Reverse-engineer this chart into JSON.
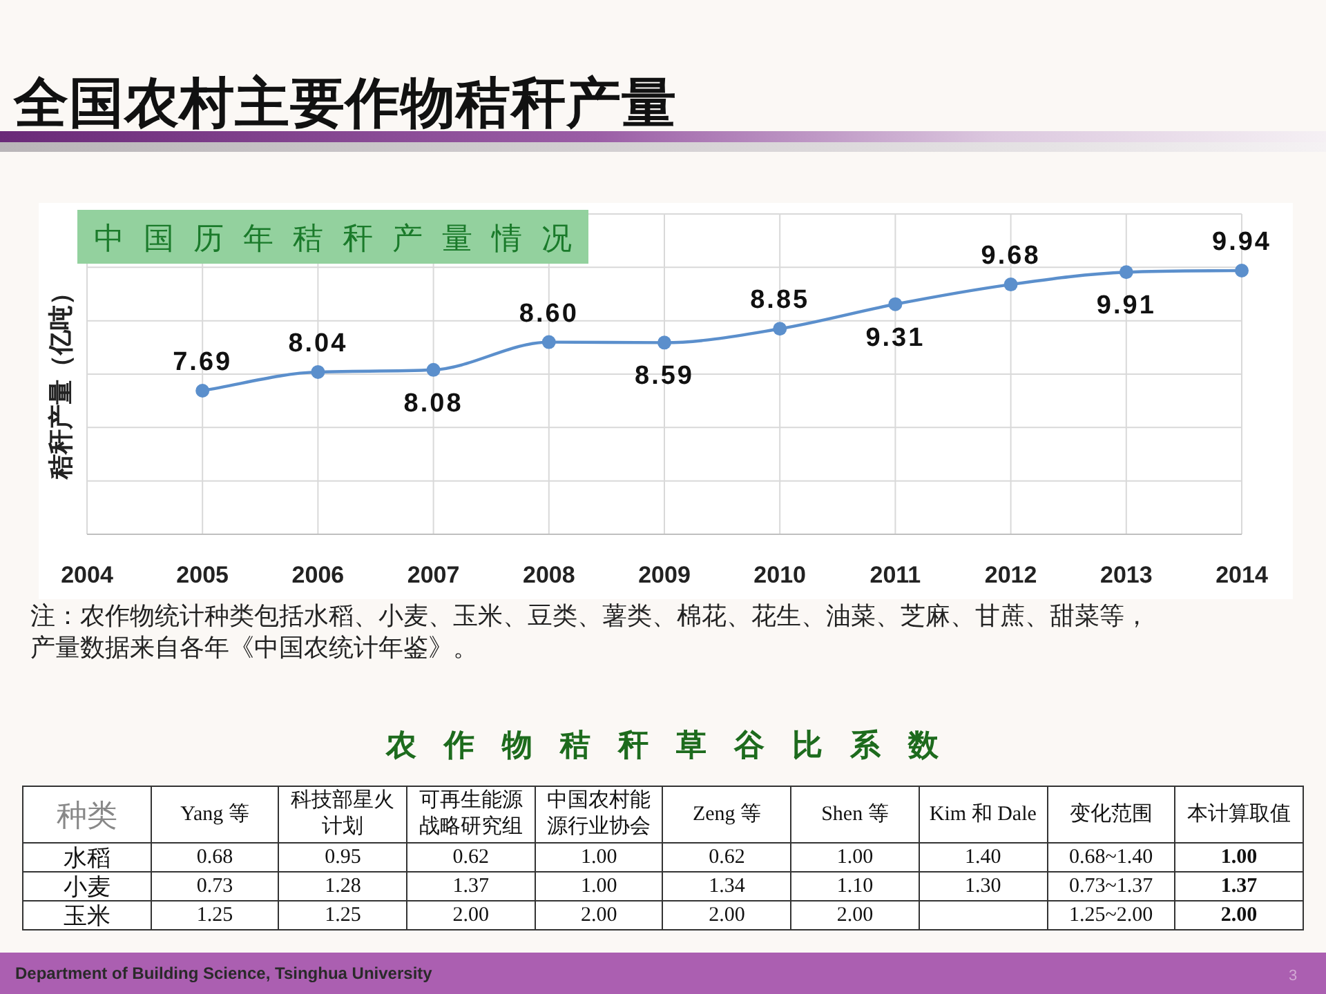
{
  "chart_data": [
    {
      "type": "line",
      "title": "全国农村主要作物秸秆产量",
      "subtitle": "中国历年秸秆产量情况",
      "ylabel": "秸秆产量（亿吨）",
      "categories": [
        "2004",
        "2005",
        "2006",
        "2007",
        "2008",
        "2009",
        "2010",
        "2011",
        "2012",
        "2013",
        "2014"
      ],
      "series": [
        {
          "color": "#5b8fcc",
          "values": [
            null,
            7.69,
            8.04,
            8.08,
            8.6,
            8.59,
            8.85,
            9.31,
            9.68,
            9.91,
            9.94
          ],
          "value_labels": [
            null,
            "7.69",
            "8.04",
            "8.08",
            "8.60",
            "8.59",
            "8.85",
            "9.31",
            "9.68",
            "9.91",
            "9.94"
          ]
        }
      ],
      "ylim": [
        5,
        11
      ],
      "yticks": [
        {
          "value": 5,
          "label": null
        },
        {
          "value": 6,
          "label": null
        },
        {
          "value": 7,
          "label": null
        },
        {
          "value": 8,
          "label": null
        },
        {
          "value": 9,
          "label": null
        },
        {
          "value": 10,
          "label": null
        },
        {
          "value": 11,
          "label": null
        }
      ],
      "grid": true,
      "tick_labels": "x",
      "marker": "circle",
      "line_style": "solid",
      "annotations": [
        "注：农作物统计种类包括水稻、小麦、玉米、豆类、薯类、棉花、花生、油菜、芝麻、甘蔗、甜菜等，产量数据来自各年《中国农统计年鉴》。",
        "Department of Building Science, Tsinghua University",
        "3"
      ]
    },
    {
      "type": "other",
      "title": "农作物秸秆草谷比系数",
      "ylabel": "种类",
      "categories": [
        "Yang 等",
        "科技部星火计划",
        "可再生能源战略研究组",
        "中国农村能源行业协会",
        "Zeng 等",
        "Shen 等",
        "Kim 和 Dale",
        "变化范围",
        "本计算取值"
      ],
      "y_categories": [
        "水稻",
        "小麦",
        "玉米"
      ],
      "cell_labels": [
        [
          "0.68",
          "0.95",
          "0.62",
          "1.00",
          "0.62",
          "1.00",
          "1.40",
          "0.68~1.40",
          "1.00"
        ],
        [
          "0.73",
          "1.28",
          "1.37",
          "1.00",
          "1.34",
          "1.10",
          "1.30",
          "0.73~1.37",
          "1.37"
        ],
        [
          "1.25",
          "1.25",
          "2.00",
          "2.00",
          "2.00",
          "2.00",
          null,
          "1.25~2.00",
          "2.00"
        ]
      ]
    }
  ]
}
